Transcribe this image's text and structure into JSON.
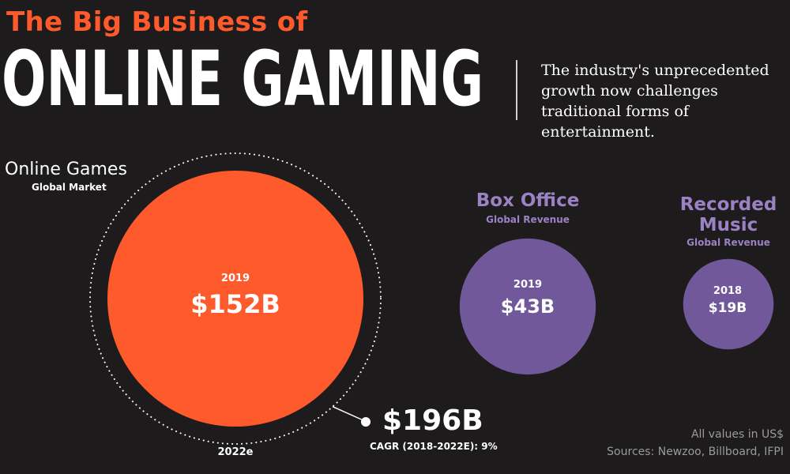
{
  "header": {
    "kicker": "The Big Business of",
    "title": "ONLINE GAMING",
    "tagline": "The industry's unprecedented growth now challenges traditional forms of entertainment."
  },
  "chart_data": {
    "type": "bubble",
    "units": "US$ billions",
    "groups": [
      {
        "key": "online_games",
        "title": "Online Games",
        "subtitle": "Global Market",
        "year": "2019",
        "value": 152,
        "value_label": "$152B",
        "color": "#fe5a2c",
        "projection": {
          "year": "2022e",
          "value": 196,
          "value_label": "$196B",
          "cagr_label": "CAGR (2018-2022E): 9%"
        }
      },
      {
        "key": "box_office",
        "title": "Box Office",
        "subtitle": "Global Revenue",
        "year": "2019",
        "value": 43,
        "value_label": "$43B",
        "color": "#70589a"
      },
      {
        "key": "recorded_music",
        "title": "Recorded Music",
        "subtitle": "Global Revenue",
        "year": "2018",
        "value": 19,
        "value_label": "$19B",
        "color": "#70589a"
      }
    ],
    "label_color": "#9b82c4",
    "ring_color": "#ffffff"
  },
  "footer": {
    "note": "All values in US$",
    "sources": "Sources: Newzoo, Billboard, IFPI"
  }
}
